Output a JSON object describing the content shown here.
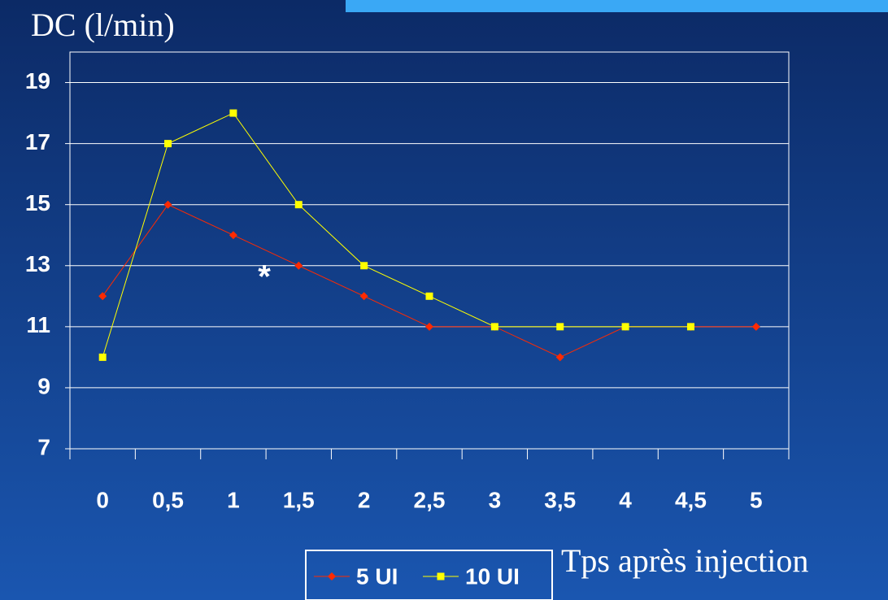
{
  "chart_data": {
    "type": "line",
    "y_label": "DC (l/min)",
    "x_label": "Tps après injection",
    "annotation": "*",
    "categories": [
      "0",
      "0,5",
      "1",
      "1,5",
      "2",
      "2,5",
      "3",
      "3,5",
      "4",
      "4,5",
      "5"
    ],
    "series": [
      {
        "name": "5 UI",
        "color": "#ff2a00",
        "values": [
          12,
          15,
          14,
          13,
          12,
          11,
          11,
          10,
          11,
          11,
          11
        ]
      },
      {
        "name": "10 UI",
        "color": "#ffff00",
        "values": [
          10,
          17,
          18,
          15,
          13,
          12,
          11,
          11,
          11,
          11,
          null
        ]
      }
    ],
    "ylim": [
      7,
      20
    ],
    "yticks": [
      7,
      9,
      11,
      13,
      15,
      17,
      19
    ],
    "grid": true
  }
}
